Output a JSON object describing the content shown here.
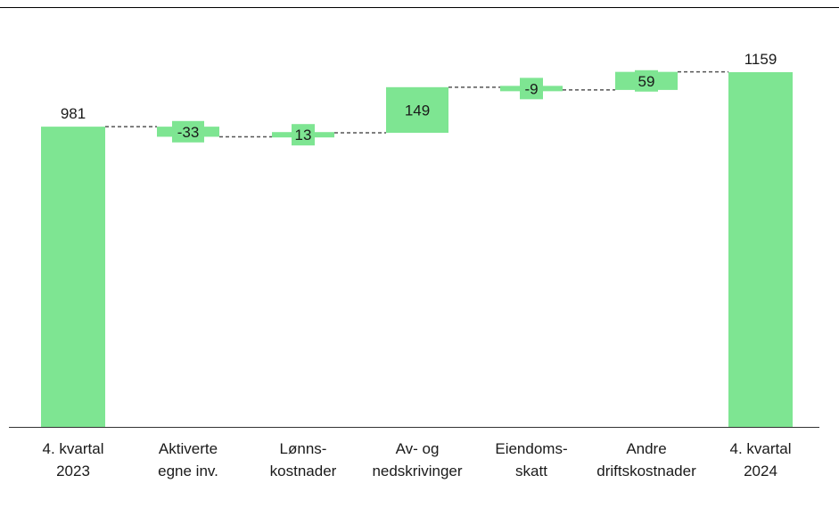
{
  "chart_data": {
    "type": "waterfall",
    "title": "",
    "xlabel": "",
    "ylabel": "",
    "categories": [
      [
        "4. kvartal",
        "2023"
      ],
      [
        "Aktiverte",
        "egne inv."
      ],
      [
        "Lønns-",
        "kostnader"
      ],
      [
        "Av- og",
        "nedskrivinger"
      ],
      [
        "Eiendoms-",
        "skatt"
      ],
      [
        "Andre",
        "driftskostnader"
      ],
      [
        "4. kvartal",
        "2024"
      ]
    ],
    "steps": [
      {
        "kind": "total",
        "value": 981,
        "label": "981"
      },
      {
        "kind": "delta",
        "value": -33,
        "label": "-33"
      },
      {
        "kind": "delta",
        "value": 13,
        "label": "13"
      },
      {
        "kind": "delta",
        "value": 149,
        "label": "149"
      },
      {
        "kind": "delta",
        "value": -9,
        "label": "-9"
      },
      {
        "kind": "delta",
        "value": 59,
        "label": "59"
      },
      {
        "kind": "total",
        "value": 1159,
        "label": "1159"
      }
    ],
    "ylim": [
      0,
      1290
    ],
    "grid": false,
    "legend": "none",
    "bar_color": "#7ee592",
    "connector_color": "#555555"
  }
}
